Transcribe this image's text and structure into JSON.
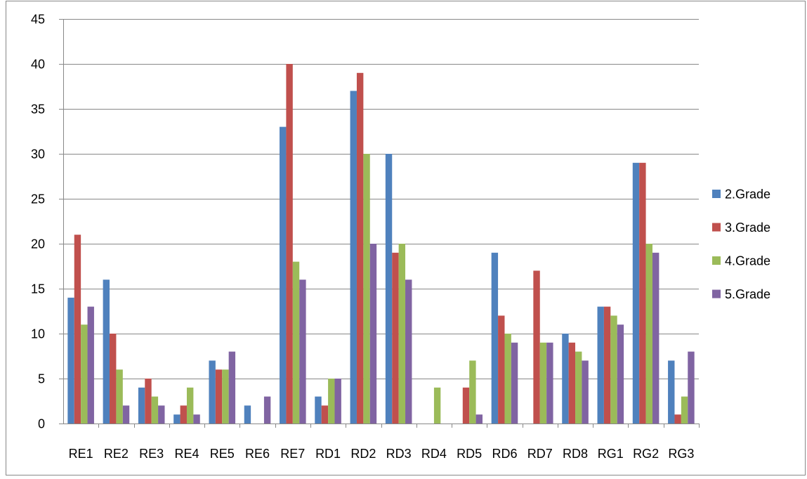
{
  "chart_data": {
    "type": "bar",
    "title": "",
    "xlabel": "",
    "ylabel": "",
    "ylim": [
      0,
      45
    ],
    "yticks": [
      0,
      5,
      10,
      15,
      20,
      25,
      30,
      35,
      40,
      45
    ],
    "grid": true,
    "legend_position": "right",
    "categories": [
      "RE1",
      "RE2",
      "RE3",
      "RE4",
      "RE5",
      "RE6",
      "RE7",
      "RD1",
      "RD2",
      "RD3",
      "RD4",
      "RD5",
      "RD6",
      "RD7",
      "RD8",
      "RG1",
      "RG2",
      "RG3"
    ],
    "series": [
      {
        "name": "2.Grade",
        "color": "#4F81BD",
        "values": [
          14,
          16,
          4,
          1,
          7,
          2,
          33,
          3,
          37,
          30,
          0,
          0,
          19,
          0,
          10,
          13,
          29,
          7
        ]
      },
      {
        "name": "3.Grade",
        "color": "#C0504D",
        "values": [
          21,
          10,
          5,
          2,
          6,
          0,
          40,
          2,
          39,
          19,
          0,
          4,
          12,
          17,
          9,
          13,
          29,
          1
        ]
      },
      {
        "name": "4.Grade",
        "color": "#9BBB59",
        "values": [
          11,
          6,
          3,
          4,
          6,
          0,
          18,
          5,
          30,
          20,
          4,
          7,
          10,
          9,
          8,
          12,
          20,
          3
        ]
      },
      {
        "name": "5.Grade",
        "color": "#8064A2",
        "values": [
          13,
          2,
          2,
          1,
          8,
          3,
          16,
          5,
          20,
          16,
          0,
          1,
          9,
          9,
          7,
          11,
          19,
          8
        ]
      }
    ]
  }
}
